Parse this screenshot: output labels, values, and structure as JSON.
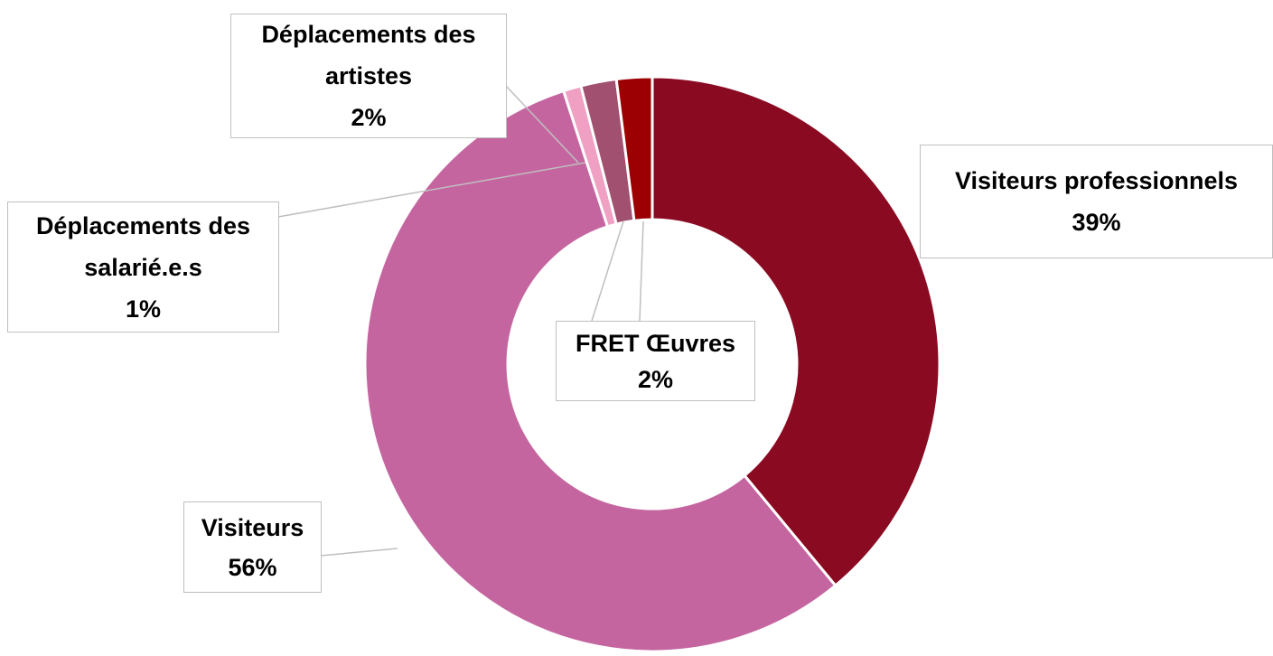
{
  "chart_data": {
    "type": "donut",
    "categories": [
      "Visiteurs professionnels",
      "Visiteurs",
      "Déplacements des salarié.e.s",
      "Déplacements des artistes",
      "FRET Œuvres"
    ],
    "values": [
      39,
      56,
      1,
      2,
      2
    ],
    "value_labels": [
      "39%",
      "56%",
      "1%",
      "2%",
      "2%"
    ],
    "colors": [
      "#8a0a22",
      "#c565a0",
      "#f0a0c2",
      "#a1506f",
      "#9c0003"
    ]
  }
}
